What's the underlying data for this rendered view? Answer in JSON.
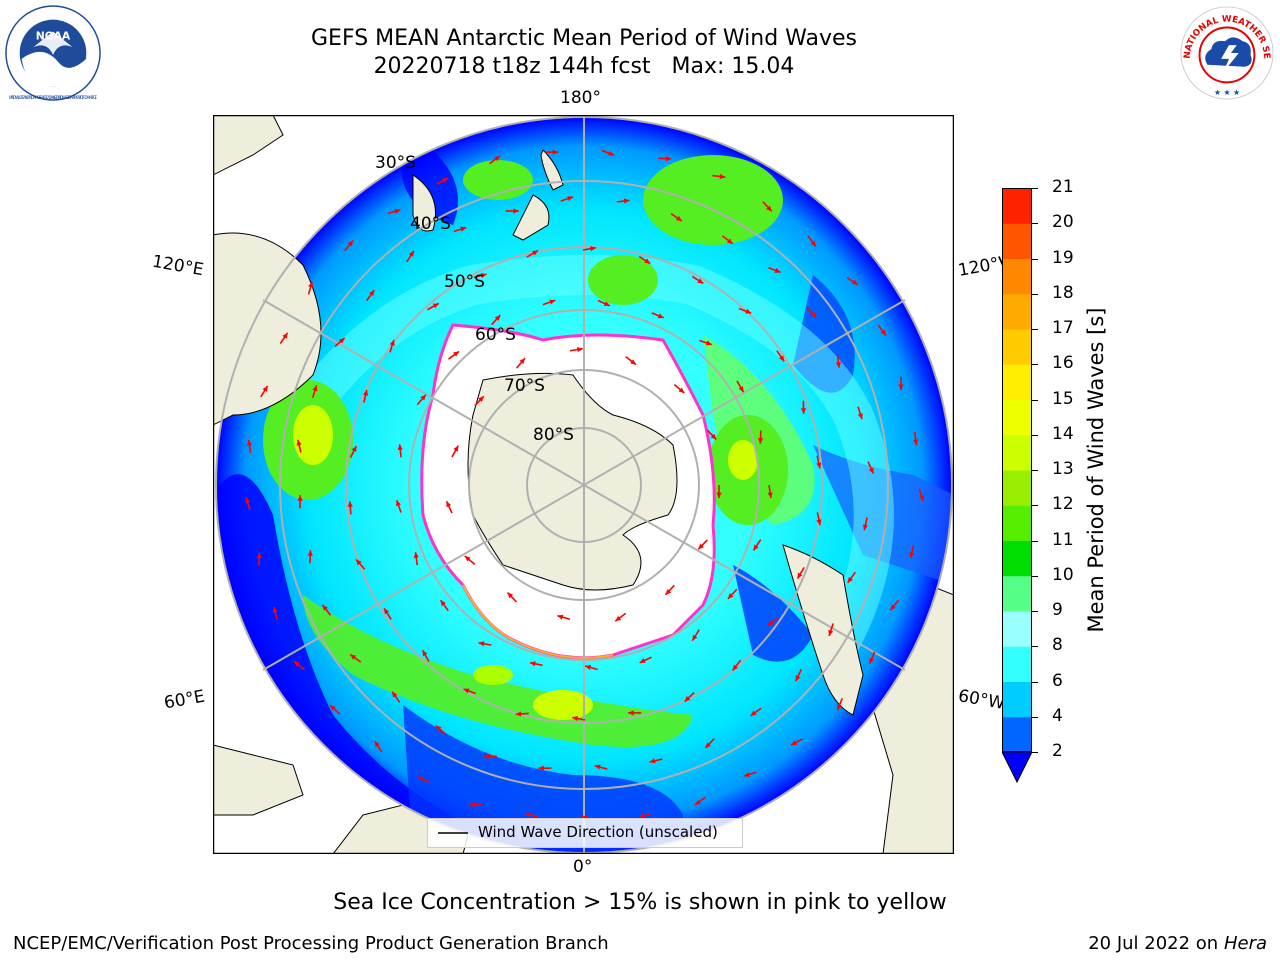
{
  "title": {
    "line1": "GEFS MEAN Antarctic Mean Period of Wind Waves",
    "run": "20220718 t18z 144h fcst",
    "max": "Max: 15.04"
  },
  "logos": {
    "noaa": {
      "text": "NOAA",
      "ring_text": "NATIONAL OCEANIC AND ATMOSPHERIC ADMINISTRATION · U.S. DEPARTMENT OF COMMERCE",
      "color": "#1e4b9a"
    },
    "nws": {
      "ring_text": "NATIONAL WEATHER SERVICE",
      "color": "#e60000"
    }
  },
  "map": {
    "projection": "south-polar-stereographic",
    "longitude_labels": {
      "top": "180°",
      "left_upper": "120°E",
      "right_upper": "120°W",
      "left_lower": "60°E",
      "right_lower": "60°W",
      "bottom": "0°"
    },
    "latitude_labels": [
      "30°S",
      "40°S",
      "50°S",
      "60°S",
      "70°S",
      "80°S"
    ],
    "land_color": "#efeddc",
    "ice_edge_color": "#ff33cc",
    "legend": "Wind Wave Direction (unscaled)",
    "arrow_color": "#ff0000"
  },
  "colorbar": {
    "label": "Mean Period of Wind Waves [s]",
    "ticks": [
      "2",
      "4",
      "6",
      "8",
      "9",
      "10",
      "11",
      "12",
      "13",
      "14",
      "15",
      "16",
      "17",
      "18",
      "19",
      "20",
      "21"
    ],
    "colors": [
      "#0066ff",
      "#00ccff",
      "#33ffff",
      "#99ffff",
      "#55ff88",
      "#00dd00",
      "#55ee00",
      "#99ee00",
      "#ccff00",
      "#eeff00",
      "#ffee00",
      "#ffcc00",
      "#ffaa00",
      "#ff8800",
      "#ff5500",
      "#ff2200"
    ],
    "under_color": "#0000ff"
  },
  "sea_ice_note": "Sea Ice Concentration > 15% is shown in pink to yellow",
  "credit": "NCEP/EMC/Verification Post Processing Product Generation Branch",
  "date": {
    "prefix": "20 Jul 2022 on",
    "machine": "Hera"
  }
}
